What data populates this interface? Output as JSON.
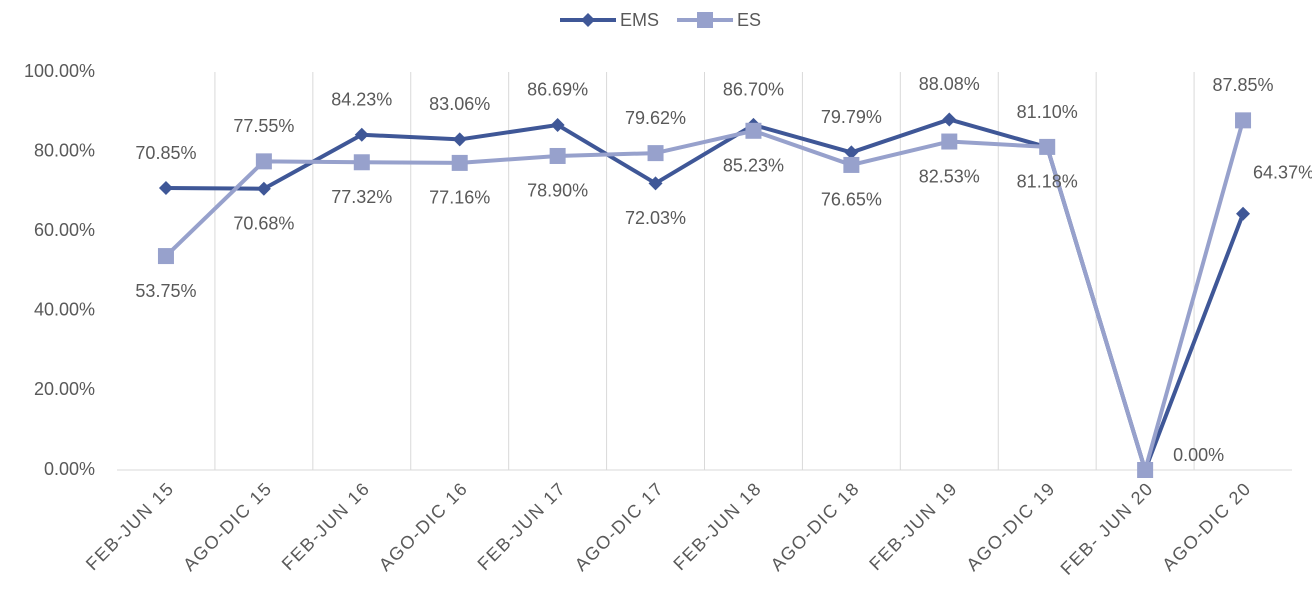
{
  "chart_data": {
    "type": "line",
    "categories": [
      "FEB-JUN 15",
      "AGO-DIC 15",
      "FEB-JUN 16",
      "AGO-DIC 16",
      "FEB-JUN 17",
      "AGO-DIC 17",
      "FEB-JUN 18",
      "AGO-DIC 18",
      "FEB-JUN 19",
      "AGO-DIC 19",
      "FEB- JUN 20",
      "AGO-DIC 20"
    ],
    "series": [
      {
        "name": "EMS",
        "color": "#3f5797",
        "marker": "diamond",
        "values": [
          70.85,
          70.68,
          84.23,
          83.06,
          86.69,
          72.03,
          86.7,
          79.79,
          88.08,
          81.1,
          0,
          64.37
        ],
        "value_labels": [
          "70.85%",
          "70.68%",
          "84.23%",
          "83.06%",
          "86.69%",
          "72.03%",
          "86.70%",
          "79.79%",
          "88.08%",
          "81.10%",
          null,
          "64.37%"
        ]
      },
      {
        "name": "ES",
        "color": "#97a1cc",
        "marker": "square",
        "values": [
          53.75,
          77.55,
          77.32,
          77.16,
          78.9,
          79.62,
          85.23,
          76.65,
          82.53,
          81.18,
          0,
          87.85
        ],
        "value_labels": [
          "53.75%",
          "77.55%",
          "77.32%",
          "77.16%",
          "78.90%",
          "79.62%",
          "85.23%",
          "76.65%",
          "82.53%",
          "81.18%",
          "0.00%",
          "87.85%"
        ]
      }
    ],
    "ylim": [
      0,
      100
    ],
    "yticks": [
      {
        "value": 0,
        "label": "0.00%"
      },
      {
        "value": 20,
        "label": "20.00%"
      },
      {
        "value": 40,
        "label": "40.00%"
      },
      {
        "value": 60,
        "label": "60.00%"
      },
      {
        "value": 80,
        "label": "80.00%"
      },
      {
        "value": 100,
        "label": "100.00%"
      }
    ],
    "grid": true,
    "legend": "top"
  }
}
